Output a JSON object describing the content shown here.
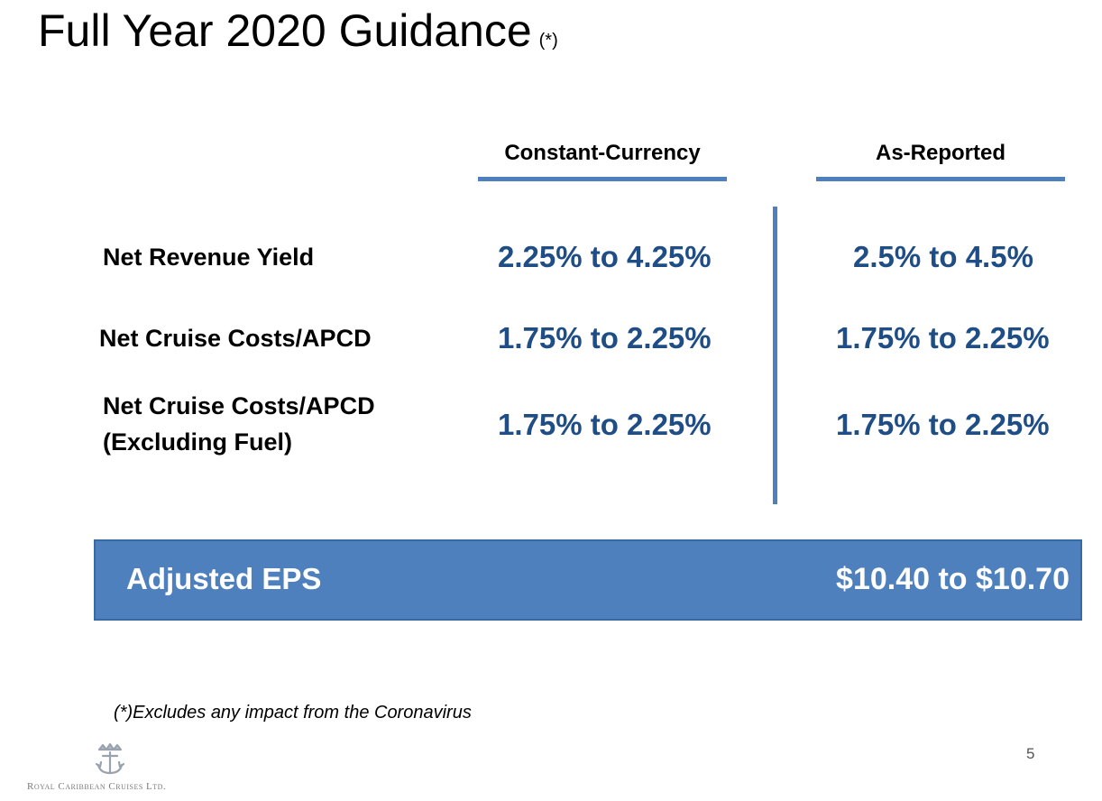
{
  "page": {
    "title": "Full Year 2020 Guidance",
    "title_marker": "(*)",
    "page_number": "5"
  },
  "table": {
    "columns": [
      "Constant-Currency",
      "As-Reported"
    ],
    "rows": [
      {
        "label_lines": [
          "Net Revenue Yield"
        ],
        "constant_currency": "2.25% to 4.25%",
        "as_reported": "2.5% to 4.5%"
      },
      {
        "label_lines": [
          "Net Cruise Costs/APCD"
        ],
        "constant_currency": "1.75% to 2.25%",
        "as_reported": "1.75% to 2.25%"
      },
      {
        "label_lines": [
          "Net Cruise Costs/APCD",
          "(Excluding Fuel)"
        ],
        "constant_currency": "1.75% to 2.25%",
        "as_reported": "1.75% to 2.25%"
      }
    ]
  },
  "eps": {
    "label": "Adjusted EPS",
    "value": "$10.40 to $10.70"
  },
  "footnote": "(*)Excludes any impact from the Coronavirus",
  "logo": {
    "text": "Royal Caribbean Cruises Ltd.",
    "icon": "crown-anchor-icon"
  },
  "colors": {
    "accent": "#4e80bd",
    "value_text": "#1f4d86"
  }
}
